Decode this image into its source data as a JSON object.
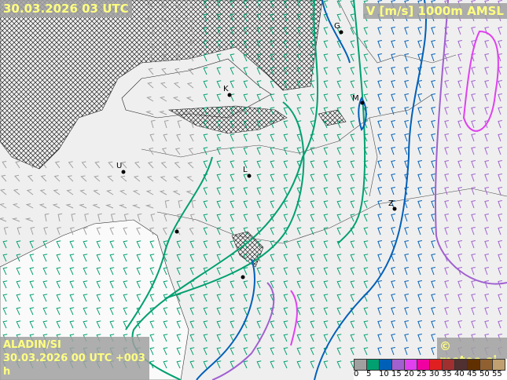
{
  "header": {
    "valid_time": "30.03.2026 03 UTC",
    "parameter": "V [m/s] 1000m AMSL"
  },
  "footer": {
    "model": "ALADIN/SI",
    "run": "30.03.2026 00 UTC +003 h",
    "copyright": "© meteo.si"
  },
  "legend": {
    "labels": [
      "0",
      "5",
      "10",
      "15",
      "20",
      "25",
      "30",
      "35",
      "40",
      "45",
      "50",
      "55"
    ],
    "colors": [
      "#a0a0a0",
      "#00a070",
      "#0060b8",
      "#a060d0",
      "#e040f0",
      "#f000a0",
      "#e02020",
      "#a03030",
      "#503030",
      "#603000",
      "#906030",
      "#c0a070"
    ]
  },
  "cities": [
    "G",
    "K",
    "M",
    "U",
    "L",
    "Z"
  ]
}
